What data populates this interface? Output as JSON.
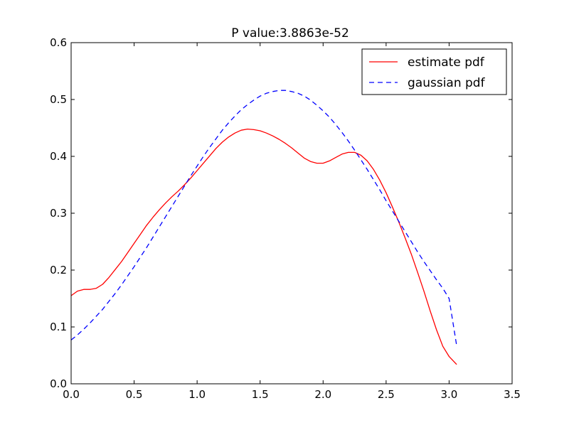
{
  "chart_data": {
    "type": "line",
    "title": "P value:3.8863e-52",
    "xlabel": "",
    "ylabel": "",
    "xlim": [
      0.0,
      3.5
    ],
    "ylim": [
      0.0,
      0.6
    ],
    "xticks": [
      "0.0",
      "0.5",
      "1.0",
      "1.5",
      "2.0",
      "2.5",
      "3.0",
      "3.5"
    ],
    "yticks": [
      "0.0",
      "0.1",
      "0.2",
      "0.3",
      "0.4",
      "0.5",
      "0.6"
    ],
    "grid": false,
    "legend_position": "top-right",
    "series": [
      {
        "name": "estimate pdf",
        "color": "#ff0000",
        "style": "solid",
        "x": [
          0.0,
          0.05,
          0.1,
          0.15,
          0.2,
          0.25,
          0.3,
          0.35,
          0.4,
          0.45,
          0.5,
          0.55,
          0.6,
          0.65,
          0.7,
          0.75,
          0.8,
          0.85,
          0.9,
          0.95,
          1.0,
          1.05,
          1.1,
          1.15,
          1.2,
          1.25,
          1.3,
          1.35,
          1.4,
          1.45,
          1.5,
          1.55,
          1.6,
          1.65,
          1.7,
          1.75,
          1.8,
          1.85,
          1.9,
          1.95,
          2.0,
          2.05,
          2.1,
          2.15,
          2.2,
          2.25,
          2.3,
          2.35,
          2.4,
          2.45,
          2.5,
          2.55,
          2.6,
          2.65,
          2.7,
          2.75,
          2.8,
          2.85,
          2.9,
          2.95,
          3.0,
          3.06
        ],
        "y": [
          0.155,
          0.163,
          0.166,
          0.166,
          0.168,
          0.175,
          0.187,
          0.201,
          0.215,
          0.231,
          0.247,
          0.263,
          0.279,
          0.293,
          0.306,
          0.318,
          0.329,
          0.339,
          0.35,
          0.362,
          0.375,
          0.388,
          0.401,
          0.414,
          0.425,
          0.434,
          0.441,
          0.446,
          0.448,
          0.447,
          0.445,
          0.441,
          0.436,
          0.43,
          0.423,
          0.415,
          0.406,
          0.397,
          0.391,
          0.388,
          0.388,
          0.392,
          0.398,
          0.404,
          0.407,
          0.407,
          0.402,
          0.392,
          0.377,
          0.358,
          0.336,
          0.311,
          0.285,
          0.257,
          0.228,
          0.196,
          0.163,
          0.128,
          0.095,
          0.066,
          0.048,
          0.034
        ]
      },
      {
        "name": "gaussian pdf",
        "color": "#0000ff",
        "style": "dashed",
        "x": [
          0.0,
          0.05,
          0.1,
          0.15,
          0.2,
          0.25,
          0.3,
          0.35,
          0.4,
          0.45,
          0.5,
          0.55,
          0.6,
          0.65,
          0.7,
          0.75,
          0.8,
          0.85,
          0.9,
          0.95,
          1.0,
          1.05,
          1.1,
          1.15,
          1.2,
          1.25,
          1.3,
          1.35,
          1.4,
          1.45,
          1.5,
          1.55,
          1.6,
          1.65,
          1.7,
          1.75,
          1.8,
          1.85,
          1.9,
          1.95,
          2.0,
          2.05,
          2.1,
          2.15,
          2.2,
          2.25,
          2.3,
          2.35,
          2.4,
          2.45,
          2.5,
          2.55,
          2.6,
          2.65,
          2.7,
          2.75,
          2.8,
          2.85,
          2.9,
          2.95,
          3.0,
          3.06
        ],
        "y": [
          0.077,
          0.086,
          0.096,
          0.107,
          0.119,
          0.131,
          0.145,
          0.159,
          0.174,
          0.19,
          0.206,
          0.223,
          0.24,
          0.258,
          0.276,
          0.294,
          0.312,
          0.33,
          0.348,
          0.366,
          0.383,
          0.4,
          0.416,
          0.431,
          0.446,
          0.459,
          0.471,
          0.482,
          0.491,
          0.499,
          0.506,
          0.511,
          0.514,
          0.516,
          0.516,
          0.514,
          0.511,
          0.506,
          0.499,
          0.49,
          0.48,
          0.469,
          0.456,
          0.442,
          0.427,
          0.411,
          0.394,
          0.377,
          0.359,
          0.341,
          0.322,
          0.304,
          0.286,
          0.268,
          0.25,
          0.232,
          0.215,
          0.199,
          0.183,
          0.168,
          0.15,
          0.067
        ]
      }
    ]
  }
}
